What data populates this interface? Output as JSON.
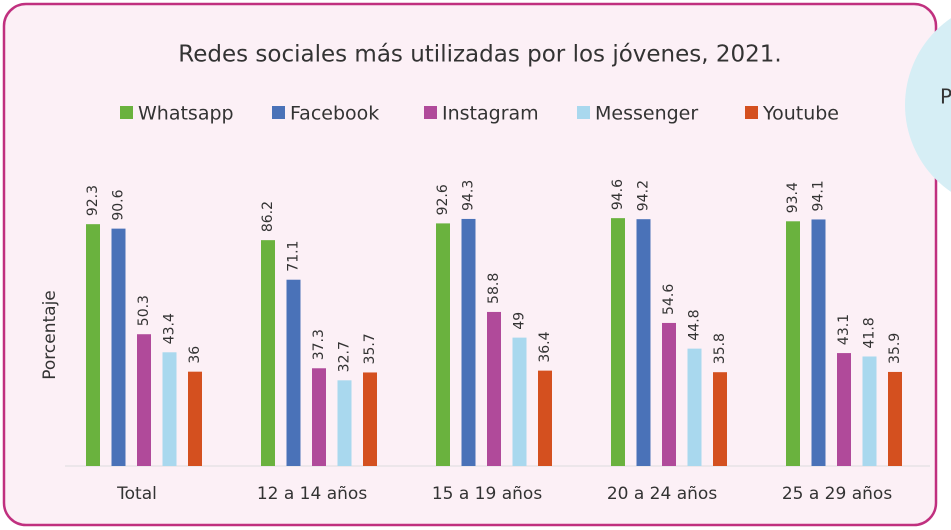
{
  "chart_data": {
    "type": "bar",
    "title": "Redes sociales más utilizadas por los jóvenes, 2021.",
    "ylabel": "Porcentaje",
    "categories": [
      "Total",
      "12 a 14 años",
      "15 a 19 años",
      "20 a 24 años",
      "25 a 29 años"
    ],
    "series": [
      {
        "name": "Whatsapp",
        "color": "#6ab23e",
        "values": [
          92.3,
          86.2,
          92.6,
          94.6,
          93.4
        ]
      },
      {
        "name": "Facebook",
        "color": "#4a72b8",
        "values": [
          90.6,
          71.1,
          94.3,
          94.2,
          94.1
        ]
      },
      {
        "name": "Instagram",
        "color": "#b04a9a",
        "values": [
          50.3,
          37.3,
          58.8,
          54.6,
          43.1
        ]
      },
      {
        "name": "Messenger",
        "color": "#a9d8ee",
        "values": [
          43.4,
          32.7,
          49,
          44.8,
          41.8
        ]
      },
      {
        "name": "Youtube",
        "color": "#d4501f",
        "values": [
          36,
          35.7,
          36.4,
          35.8,
          35.9
        ]
      }
    ],
    "ylim": [
      0,
      100
    ]
  },
  "side_note": "P"
}
